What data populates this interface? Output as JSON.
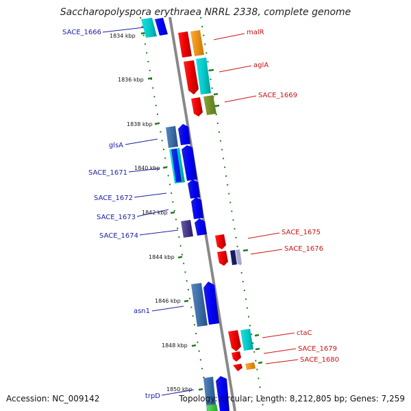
{
  "title": "Saccharopolyspora erythraea NRRL 2338, complete genome",
  "footer": {
    "accession": "Accession: NC_009142",
    "summary": "Topology: circular; Length: 8,212,805 bp; Genes: 7,259"
  },
  "colors": {
    "backbone": "#888888",
    "tick": "#1f7a1f",
    "forward_label": "#1a1aa8",
    "reverse_label": "#cc1111"
  },
  "kbp_ticks": [
    {
      "label": "1834 kbp"
    },
    {
      "label": "1836 kbp"
    },
    {
      "label": "1838 kbp"
    },
    {
      "label": "1840 kbp"
    },
    {
      "label": "1842 kbp"
    },
    {
      "label": "1844 kbp"
    },
    {
      "label": "1846 kbp"
    },
    {
      "label": "1848 kbp"
    },
    {
      "label": "1850 kbp"
    }
  ],
  "genes_forward": [
    {
      "name": "SACE_1666"
    },
    {
      "name": "glsA"
    },
    {
      "name": "SACE_1671"
    },
    {
      "name": "SACE_1672"
    },
    {
      "name": "SACE_1673"
    },
    {
      "name": "SACE_1674"
    },
    {
      "name": "asn1"
    },
    {
      "name": "trpD"
    }
  ],
  "genes_reverse": [
    {
      "name": "malR"
    },
    {
      "name": "aglA"
    },
    {
      "name": "SACE_1669"
    },
    {
      "name": "SACE_1675"
    },
    {
      "name": "SACE_1676"
    },
    {
      "name": "ctaC"
    },
    {
      "name": "SACE_1679"
    },
    {
      "name": "SACE_1680"
    }
  ]
}
